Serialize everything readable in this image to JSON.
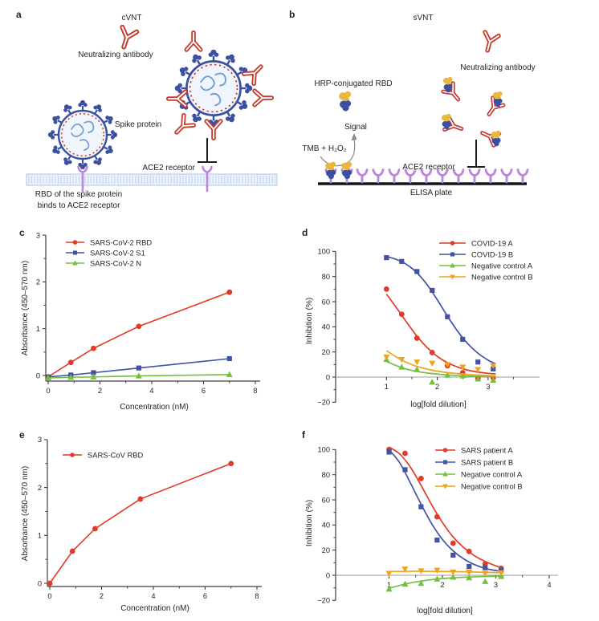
{
  "figure": {
    "background": "#ffffff",
    "panels": {
      "a": {
        "label": "a",
        "title": "cVNT",
        "labels": {
          "neutralizing_antibody": "Neutralizing antibody",
          "spike_protein": "Spike protein",
          "ace2_receptor": "ACE2 receptor",
          "caption_line1": "RBD of the spike protein",
          "caption_line2": "binds to ACE2 receptor"
        }
      },
      "b": {
        "label": "b",
        "title": "sVNT",
        "labels": {
          "hrp_rbd": "HRP-conjugated RBD",
          "neutralizing_antibody": "Neutralizing antibody",
          "signal": "Signal",
          "tmb": "TMB + H₂O₂",
          "ace2_receptor": "ACE2 receptor",
          "elisa_plate": "ELISA plate"
        }
      },
      "c": {
        "label": "c"
      },
      "d": {
        "label": "d"
      },
      "e": {
        "label": "e"
      },
      "f": {
        "label": "f"
      }
    },
    "colors": {
      "red": "#e13a26",
      "blue": "#4253a5",
      "green": "#74bf3f",
      "orange": "#f0a31f",
      "antibody_red": "#c23b2e",
      "virus_blue": "#3b4fa3",
      "receptor_purple": "#bb86dd",
      "hrp_yellow": "#e9b63f",
      "axis": "#3d3d3d",
      "zero_line": "#9b9b9b"
    }
  },
  "chart_data": [
    {
      "panel": "c",
      "type": "line",
      "xlabel": "Concentration (nM)",
      "ylabel": "Absorbance (450–570 nm)",
      "xlim": [
        0,
        8
      ],
      "ylim": [
        0,
        3
      ],
      "xticks": [
        0,
        2,
        4,
        6,
        8
      ],
      "xminor": [
        1,
        3,
        5,
        7
      ],
      "yticks": [
        0,
        1,
        2,
        3
      ],
      "yminor": [
        0.5,
        1.5,
        2.5
      ],
      "axis_style": "corner",
      "legend_position": "top-left",
      "series": [
        {
          "name": "SARS-CoV-2 RBD",
          "color": "#e13a26",
          "marker": "circle",
          "connect": true,
          "x": [
            0,
            0.875,
            1.75,
            3.5,
            7
          ],
          "y": [
            -0.03,
            0.28,
            0.58,
            1.05,
            1.78
          ]
        },
        {
          "name": "SARS-CoV-2 S1",
          "color": "#4253a5",
          "marker": "square",
          "connect": true,
          "x": [
            0,
            0.875,
            1.75,
            3.5,
            7
          ],
          "y": [
            -0.03,
            0.01,
            0.06,
            0.16,
            0.36
          ]
        },
        {
          "name": "SARS-CoV-2 N",
          "color": "#74bf3f",
          "marker": "triangle-up",
          "connect": true,
          "x": [
            0,
            0.875,
            1.75,
            3.5,
            7
          ],
          "y": [
            -0.05,
            -0.04,
            -0.03,
            -0.01,
            0.02
          ]
        }
      ]
    },
    {
      "panel": "d",
      "type": "scatter-fit",
      "xlabel": "log[fold dilution]",
      "ylabel": "Inhibition (%)",
      "xlim": [
        0,
        4
      ],
      "ylim": [
        -20,
        100
      ],
      "xticks": [
        1,
        2,
        3
      ],
      "xminor": [
        1.5,
        2.5,
        3.5
      ],
      "yticks": [
        -20,
        0,
        20,
        40,
        60,
        80,
        100
      ],
      "yminor": [
        -10,
        10,
        30,
        50,
        70,
        90
      ],
      "axis_style": "zero",
      "legend_position": "top-right",
      "series": [
        {
          "name": "COVID-19 A",
          "color": "#e13a26",
          "marker": "circle",
          "x": [
            1,
            1.3,
            1.6,
            1.9,
            2.2,
            2.5,
            2.8,
            3.1
          ],
          "y": [
            70,
            50,
            31,
            19.5,
            9,
            3.5,
            -1,
            -0.5
          ],
          "fit_x": [
            1,
            1.2,
            1.4,
            1.6,
            1.8,
            2,
            2.2,
            2.4,
            2.6,
            2.8,
            3,
            3.15
          ],
          "fit_y": [
            66,
            55,
            43.5,
            32.5,
            23.5,
            16.5,
            11.5,
            8,
            5.5,
            4,
            3,
            2.5
          ]
        },
        {
          "name": "COVID-19 B",
          "color": "#4253a5",
          "marker": "square",
          "x": [
            1,
            1.3,
            1.6,
            1.9,
            2.2,
            2.5,
            2.8,
            3.1
          ],
          "y": [
            95,
            92,
            84,
            69,
            48,
            30,
            12,
            6.5
          ],
          "fit_x": [
            1,
            1.2,
            1.4,
            1.6,
            1.8,
            2,
            2.2,
            2.4,
            2.6,
            2.8,
            3,
            3.15
          ],
          "fit_y": [
            96,
            93.5,
            89.5,
            83,
            73.5,
            61.5,
            48.5,
            36.5,
            26.5,
            19,
            13.5,
            10.5
          ]
        },
        {
          "name": "Negative control A",
          "color": "#74bf3f",
          "marker": "triangle-up",
          "x": [
            1,
            1.3,
            1.6,
            1.9,
            2.2,
            2.5,
            2.8,
            3.1
          ],
          "y": [
            14,
            8,
            6,
            -4,
            1.5,
            1,
            -1.5,
            -2.5
          ],
          "fit_x": [
            1,
            1.3,
            1.6,
            1.9,
            2.2,
            2.5,
            2.8,
            3.15
          ],
          "fit_y": [
            12.5,
            7.5,
            4.5,
            2.8,
            1.7,
            1,
            0.6,
            0.3
          ]
        },
        {
          "name": "Negative control B",
          "color": "#f0a31f",
          "marker": "triangle-down",
          "x": [
            1,
            1.3,
            1.6,
            1.9,
            2.2,
            2.5,
            2.8,
            3.1
          ],
          "y": [
            16,
            14,
            12,
            11,
            10,
            8,
            6,
            9
          ],
          "fit_x": [
            1,
            1.3,
            1.6,
            1.9,
            2.2,
            2.5,
            2.8,
            3.15
          ],
          "fit_y": [
            21,
            13.5,
            8.5,
            5.5,
            3.6,
            2.4,
            1.6,
            1
          ]
        }
      ]
    },
    {
      "panel": "e",
      "type": "line",
      "xlabel": "Concentration (nM)",
      "ylabel": "Absorbance (450–570 nm)",
      "xlim": [
        0,
        8
      ],
      "ylim": [
        0,
        3
      ],
      "xticks": [
        0,
        2,
        4,
        6,
        8
      ],
      "xminor": [
        1,
        3,
        5,
        7
      ],
      "yticks": [
        0,
        1,
        2,
        3
      ],
      "yminor": [
        0.5,
        1.5,
        2.5
      ],
      "axis_style": "corner",
      "legend_position": "top-left",
      "series": [
        {
          "name": "SARS-CoV RBD",
          "color": "#e13a26",
          "marker": "circle",
          "connect": true,
          "x": [
            0,
            0.875,
            1.75,
            3.5,
            7
          ],
          "y": [
            0,
            0.67,
            1.14,
            1.76,
            2.5
          ]
        }
      ]
    },
    {
      "panel": "f",
      "type": "scatter-fit",
      "xlabel": "log[fold dilution]",
      "ylabel": "Inhibition (%)",
      "xlim": [
        0,
        4.2
      ],
      "ylim": [
        -20,
        100
      ],
      "xticks": [
        1,
        2,
        3,
        4
      ],
      "xminor": [
        1.5,
        2.5,
        3.5
      ],
      "yticks": [
        -20,
        0,
        20,
        40,
        60,
        80,
        100
      ],
      "yminor": [
        -10,
        10,
        30,
        50,
        70,
        90
      ],
      "axis_style": "zero",
      "legend_position": "top-right",
      "series": [
        {
          "name": "SARS patient A",
          "color": "#e13a26",
          "marker": "circle",
          "x": [
            1,
            1.3,
            1.6,
            1.9,
            2.2,
            2.5,
            2.8,
            3.1
          ],
          "y": [
            100,
            97,
            77,
            46.5,
            25.5,
            19,
            9,
            5.5
          ],
          "fit_x": [
            1,
            1.2,
            1.4,
            1.6,
            1.8,
            2,
            2.2,
            2.4,
            2.6,
            2.8,
            3,
            3.15
          ],
          "fit_y": [
            102,
            96.5,
            86,
            71.5,
            56,
            42,
            30.5,
            22,
            15.5,
            11,
            7.5,
            5.5
          ]
        },
        {
          "name": "SARS patient B",
          "color": "#4253a5",
          "marker": "square",
          "x": [
            1,
            1.3,
            1.6,
            1.9,
            2.2,
            2.5,
            2.8,
            3.1
          ],
          "y": [
            98,
            84,
            54.5,
            28,
            16,
            7,
            6,
            4
          ],
          "fit_x": [
            1,
            1.2,
            1.4,
            1.6,
            1.8,
            2,
            2.2,
            2.4,
            2.6,
            2.8,
            3,
            3.15
          ],
          "fit_y": [
            100,
            89.5,
            73.5,
            56.5,
            41,
            28.5,
            19.5,
            13,
            8.5,
            5.5,
            3.8,
            3
          ]
        },
        {
          "name": "Negative control A",
          "color": "#74bf3f",
          "marker": "triangle-up",
          "x": [
            1,
            1.3,
            1.6,
            1.9,
            2.2,
            2.5,
            2.8,
            3.1
          ],
          "y": [
            -11,
            -7,
            -6.5,
            -3,
            -1.5,
            -2,
            -5,
            -1
          ],
          "fit_x": [
            1,
            1.3,
            1.6,
            1.9,
            2.2,
            2.5,
            2.8,
            3.15
          ],
          "fit_y": [
            -10.5,
            -7,
            -4.6,
            -3,
            -2,
            -1.4,
            -1,
            -0.7
          ]
        },
        {
          "name": "Negative control B",
          "color": "#f0a31f",
          "marker": "triangle-down",
          "x": [
            1,
            1.3,
            1.6,
            1.9,
            2.2,
            2.5,
            2.8,
            3.1
          ],
          "y": [
            1.5,
            5,
            3.5,
            4,
            2.5,
            2.5,
            1.5,
            2
          ],
          "fit_x": [
            1,
            1.6,
            2.2,
            2.8,
            3.15
          ],
          "fit_y": [
            3,
            3.2,
            2.9,
            2.4,
            2
          ]
        }
      ]
    }
  ]
}
